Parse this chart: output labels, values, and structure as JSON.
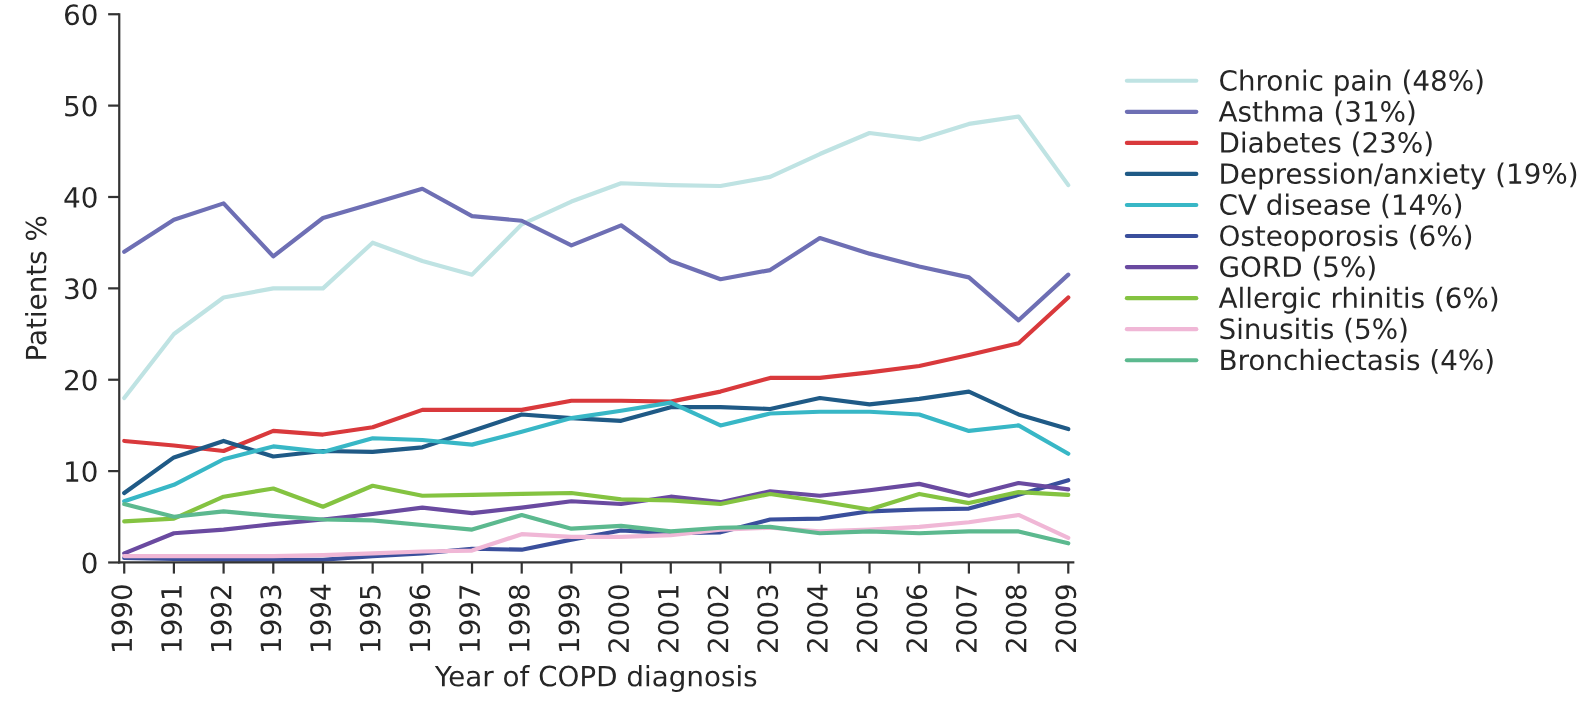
{
  "chart_data": {
    "type": "line",
    "xlabel": "Year of COPD diagnosis",
    "ylabel": "Patients %",
    "categories": [
      "1990",
      "1991",
      "1992",
      "1993",
      "1994",
      "1995",
      "1996",
      "1997",
      "1998",
      "1999",
      "2000",
      "2001",
      "2002",
      "2003",
      "2004",
      "2005",
      "2006",
      "2007",
      "2008",
      "2009"
    ],
    "ylim": [
      0,
      60
    ],
    "yticks": [
      0,
      10,
      20,
      30,
      40,
      50,
      60
    ],
    "grid": false,
    "legend": "right",
    "marker": "none",
    "line_style": "solid",
    "series": [
      {
        "name": "Chronic pain (48%)",
        "color": "#bfe3e3",
        "values": [
          18,
          25,
          29,
          30,
          30,
          35,
          33,
          31.5,
          37,
          39.5,
          41.5,
          41.3,
          41.2,
          42.2,
          44.7,
          47,
          46.3,
          48,
          48.8,
          41.3
        ]
      },
      {
        "name": "Asthma (31%)",
        "color": "#6e6fb4",
        "values": [
          34,
          37.5,
          39.3,
          33.5,
          37.7,
          39.3,
          40.9,
          37.9,
          37.4,
          34.7,
          36.9,
          33,
          31,
          32,
          35.5,
          33.8,
          32.4,
          31.2,
          26.5,
          31.5
        ]
      },
      {
        "name": "Diabetes (23%)",
        "color": "#d9393c",
        "values": [
          13.3,
          12.8,
          12.2,
          14.4,
          14,
          14.8,
          16.7,
          16.7,
          16.7,
          17.7,
          17.7,
          17.6,
          18.7,
          20.2,
          20.2,
          20.8,
          21.5,
          22.7,
          24,
          29
        ]
      },
      {
        "name": "Depression/anxiety (19%)",
        "color": "#1f5a86",
        "values": [
          7.6,
          11.5,
          13.3,
          11.6,
          12.2,
          12.1,
          12.6,
          14.4,
          16.2,
          15.8,
          15.5,
          17,
          17,
          16.8,
          18,
          17.3,
          17.9,
          18.7,
          16.2,
          14.6
        ]
      },
      {
        "name": "CV disease (14%)",
        "color": "#38b7c6",
        "values": [
          6.7,
          8.5,
          11.3,
          12.7,
          12.1,
          13.6,
          13.4,
          12.9,
          14.3,
          15.8,
          16.6,
          17.5,
          15,
          16.3,
          16.5,
          16.5,
          16.2,
          14.4,
          15,
          11.9
        ]
      },
      {
        "name": "Osteoporosis (6%)",
        "color": "#3a4f9c",
        "values": [
          0.5,
          0.4,
          0.3,
          0.3,
          0.3,
          0.7,
          1,
          1.5,
          1.4,
          2.5,
          3.5,
          3.2,
          3.3,
          4.7,
          4.8,
          5.6,
          5.8,
          5.9,
          7.4,
          9
        ]
      },
      {
        "name": "GORD (5%)",
        "color": "#6a4aa0",
        "values": [
          1,
          3.2,
          3.6,
          4.2,
          4.7,
          5.3,
          6,
          5.4,
          6,
          6.7,
          6.4,
          7.2,
          6.6,
          7.8,
          7.3,
          7.9,
          8.6,
          7.3,
          8.7,
          8
        ]
      },
      {
        "name": "Allergic rhinitis (6%)",
        "color": "#84c341",
        "values": [
          4.5,
          4.8,
          7.2,
          8.1,
          6.1,
          8.4,
          7.3,
          7.4,
          7.5,
          7.6,
          6.9,
          6.8,
          6.4,
          7.5,
          6.7,
          5.8,
          7.5,
          6.5,
          7.7,
          7.4
        ]
      },
      {
        "name": "Sinusitis (5%)",
        "color": "#f0b7d6",
        "values": [
          0.7,
          0.7,
          0.7,
          0.7,
          0.8,
          1,
          1.2,
          1.3,
          3.1,
          2.8,
          2.8,
          3,
          3.6,
          3.8,
          3.4,
          3.6,
          3.9,
          4.4,
          5.2,
          2.7
        ]
      },
      {
        "name": "Bronchiectasis (4%)",
        "color": "#5cb98f",
        "values": [
          6.4,
          5,
          5.6,
          5.1,
          4.7,
          4.6,
          4.1,
          3.6,
          5.2,
          3.7,
          4,
          3.4,
          3.8,
          3.9,
          3.2,
          3.4,
          3.2,
          3.4,
          3.4,
          2.1
        ]
      }
    ]
  }
}
